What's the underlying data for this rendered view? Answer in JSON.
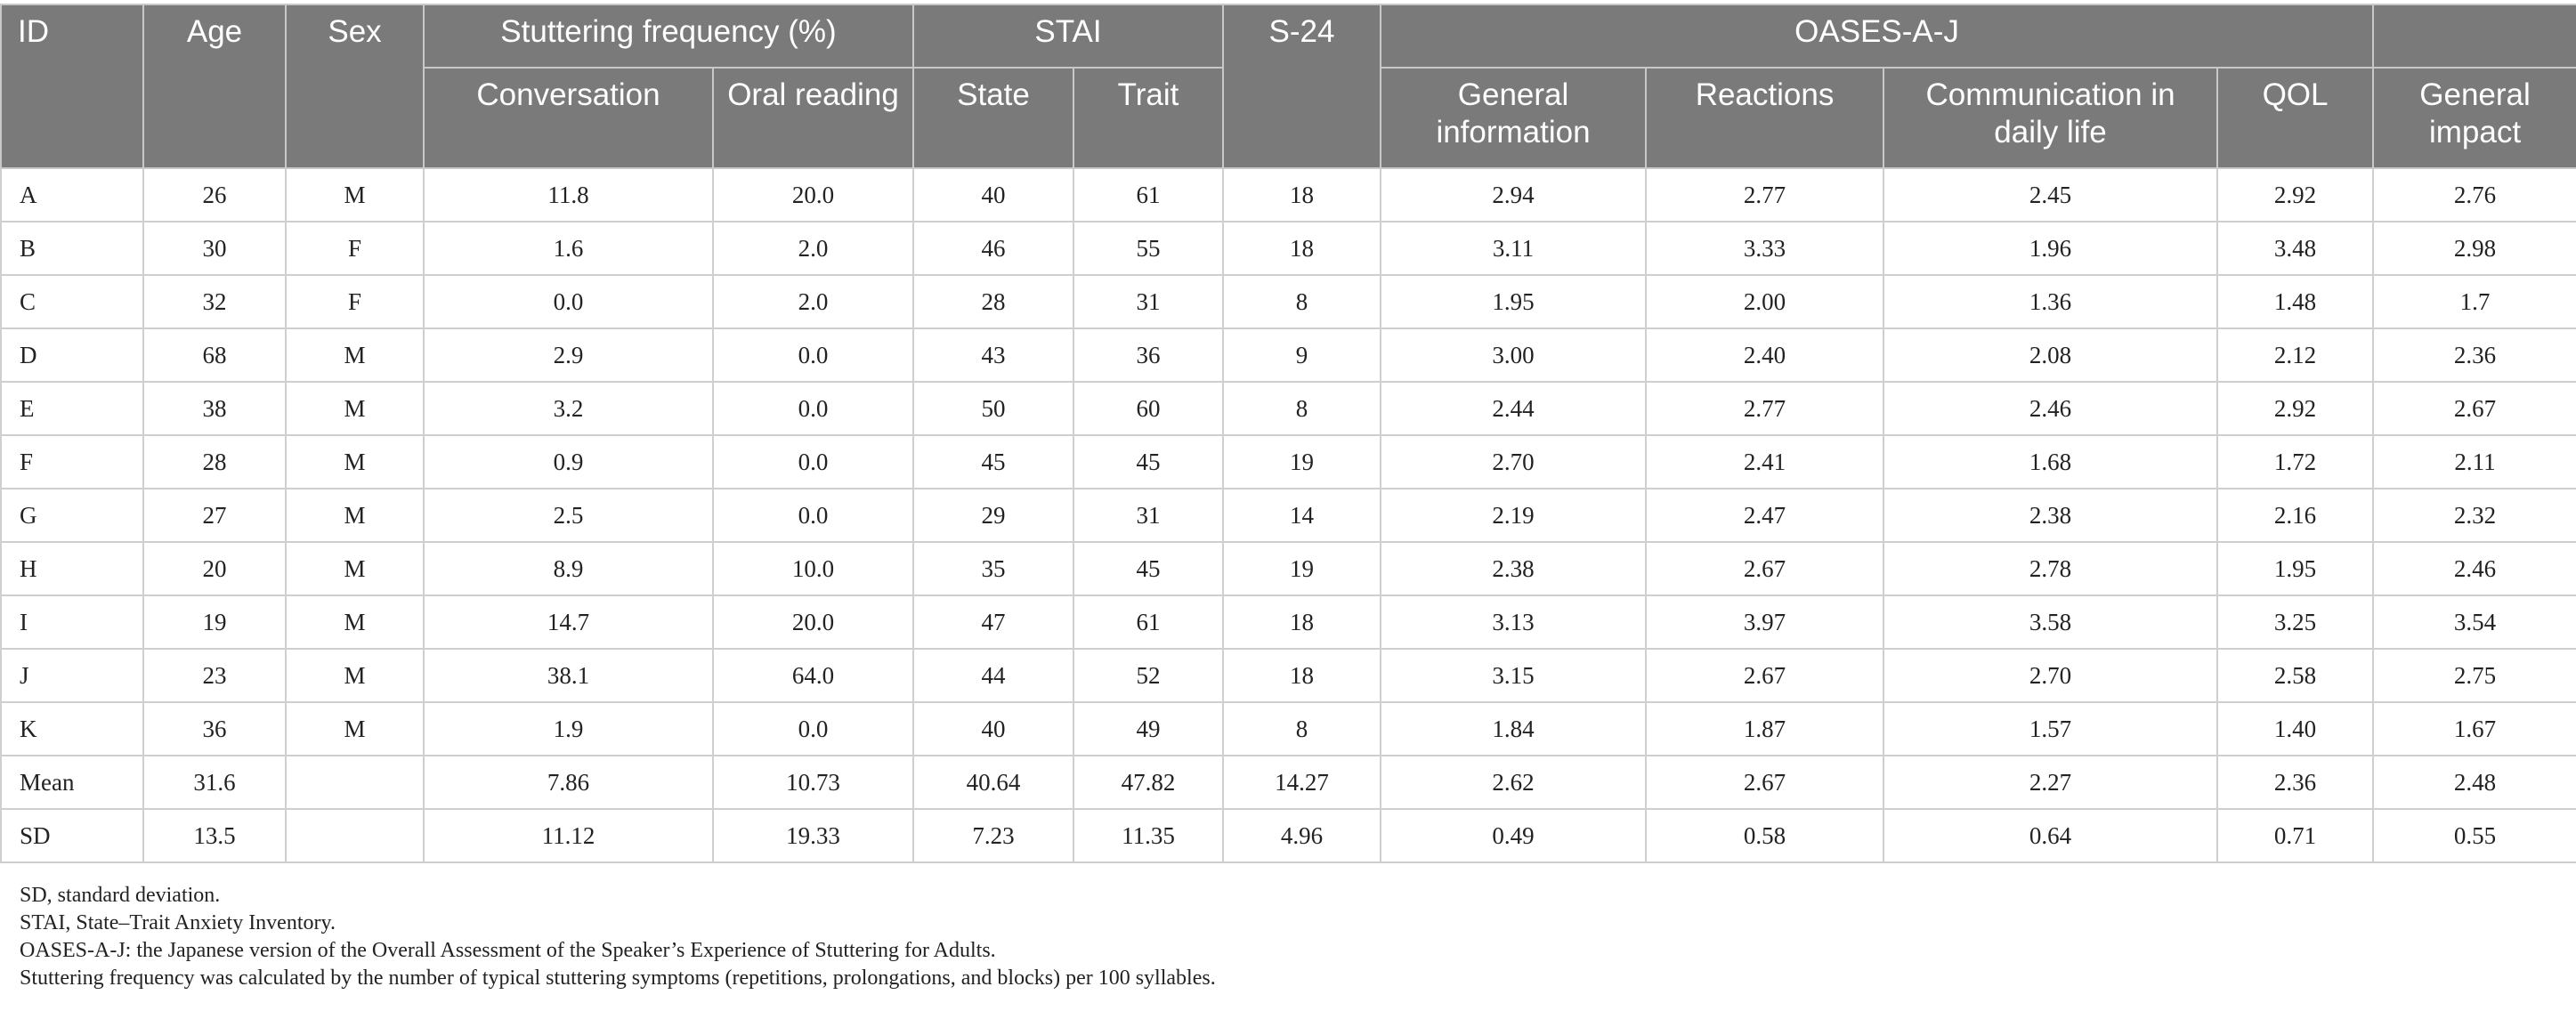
{
  "header": {
    "id": "ID",
    "age": "Age",
    "sex": "Sex",
    "stuttering_frequency": "Stuttering frequency (%)",
    "conversation": "Conversation",
    "oral_reading": "Oral reading",
    "stai": "STAI",
    "state": "State",
    "trait": "Trait",
    "s24": "S-24",
    "oases": "OASES-A-J",
    "general_information": "General information",
    "reactions": "Reactions",
    "communication_daily_life": "Communication in daily life",
    "qol": "QOL",
    "general_impact": "General impact"
  },
  "rows": [
    [
      "A",
      "26",
      "M",
      "11.8",
      "20.0",
      "40",
      "61",
      "18",
      "2.94",
      "2.77",
      "2.45",
      "2.92",
      "2.76"
    ],
    [
      "B",
      "30",
      "F",
      "1.6",
      "2.0",
      "46",
      "55",
      "18",
      "3.11",
      "3.33",
      "1.96",
      "3.48",
      "2.98"
    ],
    [
      "C",
      "32",
      "F",
      "0.0",
      "2.0",
      "28",
      "31",
      "8",
      "1.95",
      "2.00",
      "1.36",
      "1.48",
      "1.7"
    ],
    [
      "D",
      "68",
      "M",
      "2.9",
      "0.0",
      "43",
      "36",
      "9",
      "3.00",
      "2.40",
      "2.08",
      "2.12",
      "2.36"
    ],
    [
      "E",
      "38",
      "M",
      "3.2",
      "0.0",
      "50",
      "60",
      "8",
      "2.44",
      "2.77",
      "2.46",
      "2.92",
      "2.67"
    ],
    [
      "F",
      "28",
      "M",
      "0.9",
      "0.0",
      "45",
      "45",
      "19",
      "2.70",
      "2.41",
      "1.68",
      "1.72",
      "2.11"
    ],
    [
      "G",
      "27",
      "M",
      "2.5",
      "0.0",
      "29",
      "31",
      "14",
      "2.19",
      "2.47",
      "2.38",
      "2.16",
      "2.32"
    ],
    [
      "H",
      "20",
      "M",
      "8.9",
      "10.0",
      "35",
      "45",
      "19",
      "2.38",
      "2.67",
      "2.78",
      "1.95",
      "2.46"
    ],
    [
      "I",
      "19",
      "M",
      "14.7",
      "20.0",
      "47",
      "61",
      "18",
      "3.13",
      "3.97",
      "3.58",
      "3.25",
      "3.54"
    ],
    [
      "J",
      "23",
      "M",
      "38.1",
      "64.0",
      "44",
      "52",
      "18",
      "3.15",
      "2.67",
      "2.70",
      "2.58",
      "2.75"
    ],
    [
      "K",
      "36",
      "M",
      "1.9",
      "0.0",
      "40",
      "49",
      "8",
      "1.84",
      "1.87",
      "1.57",
      "1.40",
      "1.67"
    ],
    [
      "Mean",
      "31.6",
      "",
      "7.86",
      "10.73",
      "40.64",
      "47.82",
      "14.27",
      "2.62",
      "2.67",
      "2.27",
      "2.36",
      "2.48"
    ],
    [
      "SD",
      "13.5",
      "",
      "11.12",
      "19.33",
      "7.23",
      "11.35",
      "4.96",
      "0.49",
      "0.58",
      "0.64",
      "0.71",
      "0.55"
    ]
  ],
  "notes": [
    "SD, standard deviation.",
    "STAI, State–Trait Anxiety Inventory.",
    "OASES-A-J: the Japanese version of the Overall Assessment of the Speaker’s Experience of Stuttering for Adults.",
    "Stuttering frequency was calculated by the number of typical stuttering symptoms (repetitions, prolongations, and blocks) per 100 syllables."
  ]
}
